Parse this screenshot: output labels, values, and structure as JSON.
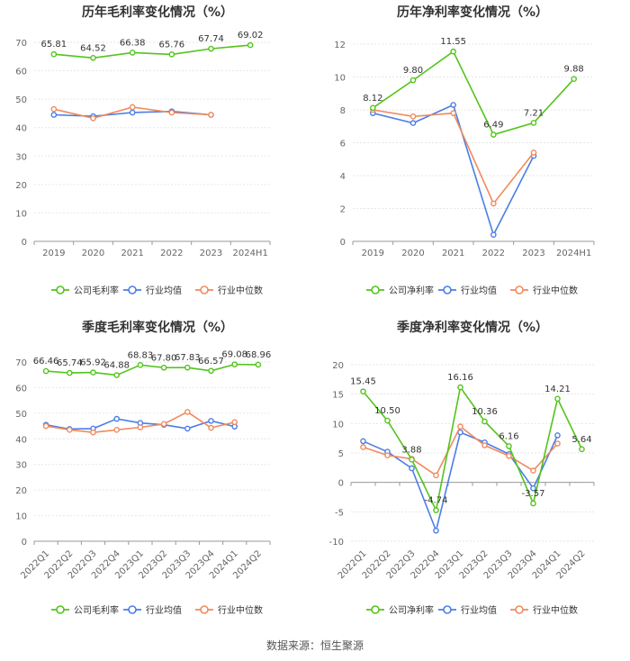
{
  "source": "数据来源：恒生聚源",
  "legend_labels": {
    "company_gross": "公司毛利率",
    "company_net": "公司净利率",
    "industry_avg": "行业均值",
    "industry_median": "行业中位数"
  },
  "colors": {
    "company": "#52c41a",
    "industry_avg": "#4a7ee6",
    "industry_median": "#f08a5d"
  },
  "chart_data": [
    {
      "type": "line",
      "title": "历年毛利率变化情况（%）",
      "categories": [
        "2019",
        "2020",
        "2021",
        "2022",
        "2023",
        "2024H1"
      ],
      "ylim": [
        0,
        70
      ],
      "yticks": [
        0,
        10,
        20,
        30,
        40,
        50,
        60,
        70
      ],
      "series": [
        {
          "name": "公司毛利率",
          "key": "company",
          "values": [
            65.81,
            64.52,
            66.38,
            65.76,
            67.74,
            69.02
          ],
          "labels": [
            "65.81",
            "64.52",
            "66.38",
            "65.76",
            "67.74",
            "69.02"
          ]
        },
        {
          "name": "行业均值",
          "key": "industry_avg",
          "values": [
            44.5,
            44.0,
            45.3,
            45.7,
            44.5,
            null
          ]
        },
        {
          "name": "行业中位数",
          "key": "industry_median",
          "values": [
            46.5,
            43.3,
            47.2,
            45.3,
            44.5,
            null
          ]
        }
      ]
    },
    {
      "type": "line",
      "title": "历年净利率变化情况（%）",
      "categories": [
        "2019",
        "2020",
        "2021",
        "2022",
        "2023",
        "2024H1"
      ],
      "ylim": [
        0,
        12
      ],
      "yticks": [
        0,
        2,
        4,
        6,
        8,
        10,
        12
      ],
      "series": [
        {
          "name": "公司净利率",
          "key": "company",
          "values": [
            8.12,
            9.8,
            11.55,
            6.49,
            7.21,
            9.88
          ],
          "labels": [
            "8.12",
            "9.80",
            "11.55",
            "6.49",
            "7.21",
            "9.88"
          ]
        },
        {
          "name": "行业均值",
          "key": "industry_avg",
          "values": [
            7.8,
            7.2,
            8.3,
            0.4,
            5.2,
            null
          ]
        },
        {
          "name": "行业中位数",
          "key": "industry_median",
          "values": [
            8.0,
            7.6,
            7.8,
            2.3,
            5.4,
            null
          ]
        }
      ]
    },
    {
      "type": "line",
      "title": "季度毛利率变化情况（%）",
      "categories": [
        "2022Q1",
        "2022Q2",
        "2022Q3",
        "2022Q4",
        "2023Q1",
        "2023Q2",
        "2023Q3",
        "2023Q4",
        "2024Q1",
        "2024Q2"
      ],
      "ylim": [
        0,
        70
      ],
      "yticks": [
        0,
        10,
        20,
        30,
        40,
        50,
        60,
        70
      ],
      "series": [
        {
          "name": "公司毛利率",
          "key": "company",
          "values": [
            66.46,
            65.74,
            65.92,
            64.88,
            68.83,
            67.8,
            67.83,
            66.57,
            69.08,
            68.96
          ],
          "labels": [
            "66.46",
            "65.74",
            "65.92",
            "64.88",
            "68.83",
            "67.80",
            "67.83",
            "66.57",
            "69.08",
            "68.96"
          ]
        },
        {
          "name": "行业均值",
          "key": "industry_avg",
          "values": [
            45.5,
            43.8,
            44.0,
            47.8,
            46.2,
            45.5,
            44.0,
            47.0,
            44.8,
            null
          ]
        },
        {
          "name": "行业中位数",
          "key": "industry_median",
          "values": [
            45.0,
            43.5,
            42.5,
            43.5,
            44.5,
            45.8,
            50.5,
            44.3,
            46.5,
            null
          ]
        }
      ]
    },
    {
      "type": "line",
      "title": "季度净利率变化情况（%）",
      "categories": [
        "2022Q1",
        "2022Q2",
        "2022Q3",
        "2022Q4",
        "2023Q1",
        "2023Q2",
        "2023Q3",
        "2023Q4",
        "2024Q1",
        "2024Q2"
      ],
      "ylim": [
        -10,
        20
      ],
      "yticks": [
        -10,
        -5,
        0,
        5,
        10,
        15,
        20
      ],
      "series": [
        {
          "name": "公司净利率",
          "key": "company",
          "values": [
            15.45,
            10.5,
            3.88,
            -4.74,
            16.16,
            10.36,
            6.16,
            -3.57,
            14.21,
            5.64
          ],
          "labels": [
            "15.45",
            "10.50",
            "3.88",
            "-4.74",
            "16.16",
            "10.36",
            "6.16",
            "-3.57",
            "14.21",
            "5.64"
          ]
        },
        {
          "name": "行业均值",
          "key": "industry_avg",
          "values": [
            7.0,
            5.2,
            2.4,
            -8.2,
            8.5,
            6.8,
            4.8,
            -1.0,
            8.0,
            null
          ]
        },
        {
          "name": "行业中位数",
          "key": "industry_median",
          "values": [
            6.0,
            4.6,
            4.0,
            1.2,
            9.5,
            6.3,
            4.5,
            2.0,
            6.6,
            null
          ]
        }
      ]
    }
  ]
}
